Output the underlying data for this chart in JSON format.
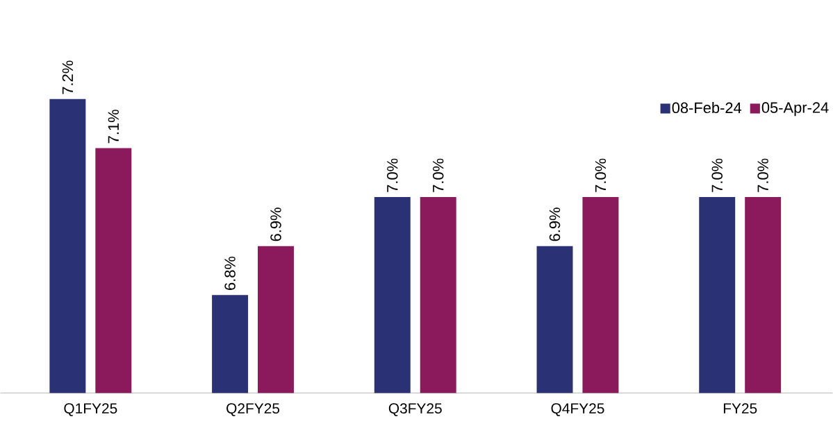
{
  "chart_data": {
    "type": "bar",
    "categories": [
      "Q1FY25",
      "Q2FY25",
      "Q3FY25",
      "Q4FY25",
      "FY25"
    ],
    "series": [
      {
        "name": "08-Feb-24",
        "color": "#2b3175",
        "values": [
          7.2,
          6.8,
          7.0,
          6.9,
          7.0
        ],
        "value_labels": [
          "7.2%",
          "6.8%",
          "7.0%",
          "6.9%",
          "7.0%"
        ]
      },
      {
        "name": "05-Apr-24",
        "color": "#8b1a5c",
        "values": [
          7.1,
          6.9,
          7.0,
          7.0,
          7.0
        ],
        "value_labels": [
          "7.1%",
          "6.9%",
          "7.0%",
          "7.0%",
          "7.0%"
        ]
      }
    ],
    "ylim": [
      6.6,
      7.2
    ],
    "legend": "top right",
    "tick_labels": "x"
  }
}
